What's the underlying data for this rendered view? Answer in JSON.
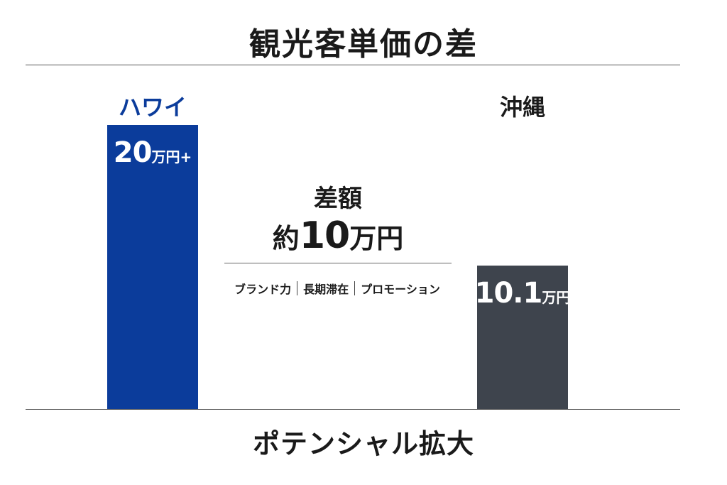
{
  "chart_data": {
    "type": "bar",
    "title": "観光客単価の差",
    "unit": "万円",
    "categories": [
      "ハワイ",
      "沖縄"
    ],
    "values": [
      20,
      10.1
    ],
    "value_labels": [
      {
        "number": "20",
        "suffix": "万円+"
      },
      {
        "number": "10.1",
        "suffix": "万円"
      }
    ],
    "colors": [
      "#0b3c9b",
      "#3e444d"
    ],
    "category_colors": [
      "#0b3c9b",
      "#1a1a1a"
    ],
    "ylim": [
      0,
      20
    ],
    "grid": false,
    "annotation": {
      "heading": "差額",
      "prefix": "約",
      "number": "10",
      "unit": "万円",
      "factors": [
        "ブランド力",
        "長期滞在",
        "プロモーション"
      ]
    },
    "caption": "ポテンシャル拡大"
  }
}
